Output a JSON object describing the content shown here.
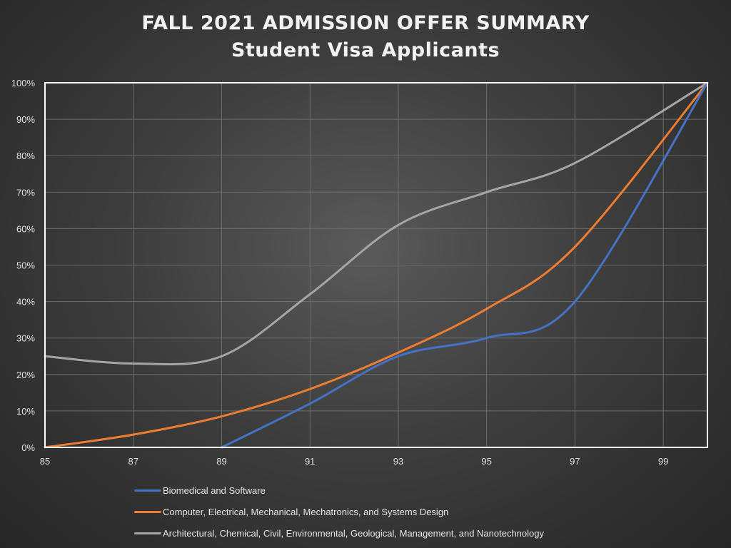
{
  "title": "FALL 2021 ADMISSION OFFER SUMMARY",
  "subtitle": "Student Visa Applicants",
  "chart_data": {
    "type": "line",
    "title": "FALL 2021 ADMISSION OFFER SUMMARY",
    "subtitle": "Student Visa Applicants",
    "xlabel": "",
    "ylabel": "",
    "xlim": [
      85,
      100
    ],
    "ylim": [
      0,
      100
    ],
    "x_ticks": [
      "85",
      "87",
      "89",
      "91",
      "93",
      "95",
      "97",
      "99"
    ],
    "y_ticks": [
      "0%",
      "10%",
      "20%",
      "30%",
      "40%",
      "50%",
      "60%",
      "70%",
      "80%",
      "90%",
      "100%"
    ],
    "grid": true,
    "smooth": true,
    "legend_position": "bottom",
    "series": [
      {
        "name": "Biomedical and Software",
        "color": "#4472c4",
        "x": [
          89,
          91,
          93,
          95,
          97,
          100
        ],
        "y": [
          0,
          12,
          25,
          30,
          40,
          100
        ]
      },
      {
        "name": "Computer, Electrical, Mechanical, Mechatronics, and Systems Design",
        "color": "#ed7d31",
        "x": [
          85,
          87,
          89,
          91,
          93,
          95,
          97,
          100
        ],
        "y": [
          0,
          3.5,
          8.5,
          16,
          26,
          38,
          55,
          100
        ]
      },
      {
        "name": "Architectural, Chemical, Civil, Environmental, Geological, Management, and Nanotechnology",
        "color": "#a5a5a5",
        "x": [
          85,
          87,
          89,
          91,
          93,
          95,
          97,
          100
        ],
        "y": [
          25,
          23,
          25,
          42,
          61,
          70,
          78,
          100
        ]
      }
    ]
  }
}
